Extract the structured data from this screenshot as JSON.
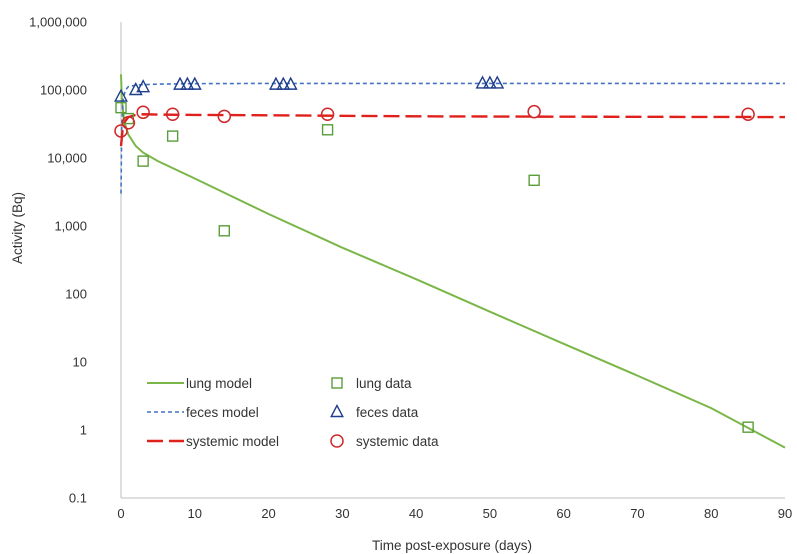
{
  "chart_data": {
    "type": "scatter",
    "xlabel": "Time post-exposure (days)",
    "ylabel": "Activity (Bq)",
    "xlim": [
      0,
      90
    ],
    "ylim": [
      0.1,
      1000000
    ],
    "yscale": "log",
    "x_ticks": [
      "0",
      "10",
      "20",
      "30",
      "40",
      "50",
      "60",
      "70",
      "80",
      "90"
    ],
    "y_ticks": [
      "0.1",
      "1",
      "10",
      "100",
      "1,000",
      "10,000",
      "100,000",
      "1,000,000"
    ],
    "grid": false,
    "legend_position": "bottom-left",
    "series": [
      {
        "name": "lung model",
        "kind": "line",
        "color": "#7ab648",
        "dash": "solid",
        "x": [
          0,
          0.1,
          0.3,
          0.6,
          1,
          2,
          3,
          5,
          10,
          20,
          30,
          40,
          50,
          60,
          70,
          80,
          90
        ],
        "y": [
          170000,
          80000,
          45000,
          30000,
          22000,
          15000,
          12000,
          9000,
          5000,
          1500,
          480,
          165,
          55,
          18.5,
          6.3,
          2.1,
          0.55
        ]
      },
      {
        "name": "feces model",
        "kind": "line",
        "color": "#4472c4",
        "dash": "dashed",
        "x": [
          0,
          0.1,
          0.3,
          0.6,
          1,
          2,
          3,
          5,
          10,
          20,
          40,
          60,
          90
        ],
        "y": [
          3000,
          30000,
          75000,
          100000,
          112000,
          118000,
          120000,
          122000,
          124000,
          125000,
          125000,
          125000,
          125000
        ]
      },
      {
        "name": "systemic model",
        "kind": "line",
        "color": "#e0201b",
        "dash": "longdash",
        "x": [
          0,
          0.2,
          0.5,
          1,
          2,
          3,
          5,
          10,
          20,
          40,
          60,
          90
        ],
        "y": [
          15000,
          25000,
          34000,
          40000,
          43000,
          44000,
          43500,
          43000,
          42500,
          41000,
          40500,
          40000
        ]
      },
      {
        "name": "lung data",
        "kind": "points",
        "marker": "square",
        "color": "#5a9e3a",
        "x": [
          0,
          1,
          3,
          7,
          14,
          28,
          56,
          85
        ],
        "y": [
          55000,
          38000,
          9000,
          21000,
          850,
          26000,
          4700,
          1.1
        ]
      },
      {
        "name": "feces data",
        "kind": "points",
        "marker": "triangle",
        "color": "#1f3e8c",
        "x": [
          0,
          2,
          3,
          8,
          9,
          10,
          21,
          22,
          23,
          49,
          50,
          51
        ],
        "y": [
          80000,
          100000,
          110000,
          120000,
          120000,
          120000,
          120000,
          120000,
          120000,
          125000,
          125000,
          125000
        ]
      },
      {
        "name": "systemic data",
        "kind": "points",
        "marker": "circle",
        "color": "#d0282a",
        "x": [
          0,
          1,
          3,
          7,
          14,
          28,
          56,
          85
        ],
        "y": [
          25000,
          33000,
          47000,
          44000,
          41000,
          44000,
          48000,
          44000
        ]
      }
    ]
  }
}
